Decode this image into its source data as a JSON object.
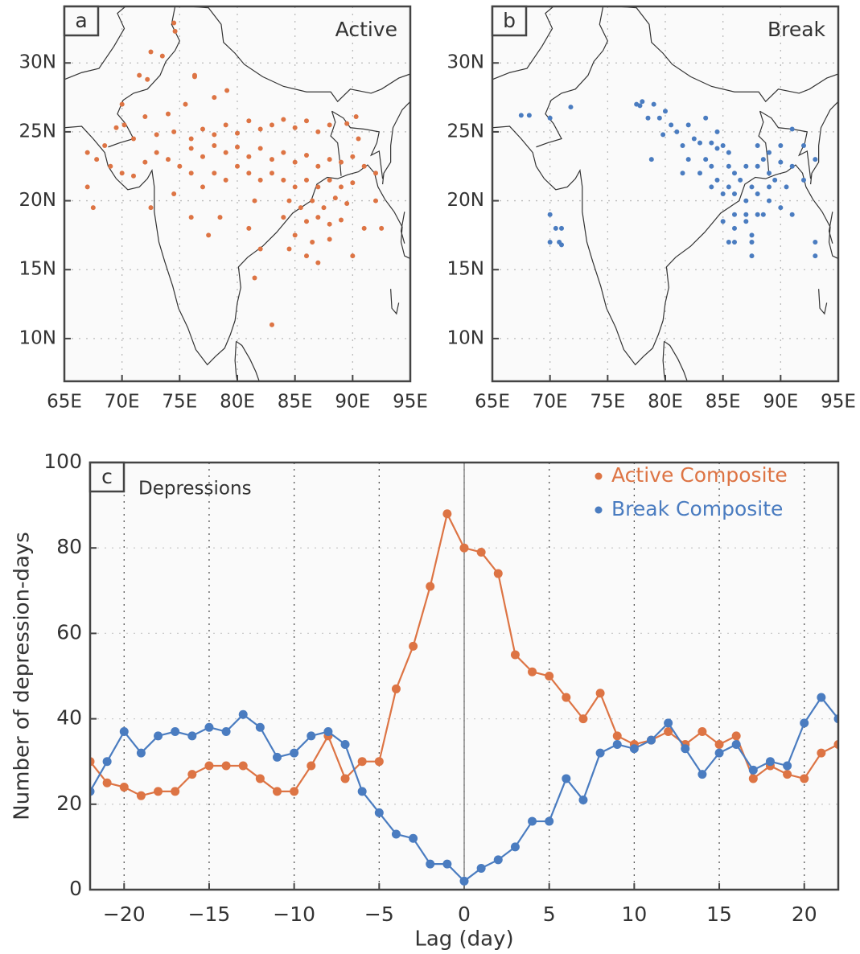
{
  "chart_data": [
    {
      "type": "scatter",
      "panel_label": "a",
      "title": "Active",
      "color": "#dd7444",
      "x": [
        72.5,
        73.5,
        74.6,
        74.5,
        72.2,
        71.5,
        76.3,
        79.1,
        78,
        75.5,
        74,
        72,
        70,
        69.5,
        70.2,
        71,
        73,
        74.5,
        76,
        77,
        78,
        79,
        80,
        81,
        82,
        83,
        84,
        85,
        86,
        87,
        88,
        89.5,
        90.3,
        67,
        67.8,
        68.5,
        69,
        70,
        71,
        72,
        73,
        74,
        75,
        76,
        77,
        78,
        79,
        80,
        81,
        82,
        83,
        84,
        85,
        86,
        87,
        88,
        89,
        90,
        91,
        92,
        72.5,
        74.5,
        76,
        77,
        78,
        79,
        80,
        81,
        82,
        83,
        84,
        85,
        86,
        87,
        88,
        89,
        90,
        84.5,
        85.5,
        86.5,
        87.5,
        88.5,
        89.5,
        86,
        87,
        88,
        89,
        84,
        85,
        86.5,
        88,
        84.5,
        86,
        87,
        90,
        91,
        92.5,
        92,
        83,
        81.5,
        82,
        81,
        78.5,
        77.5,
        76,
        67.5,
        67,
        76.3,
        90.5,
        81.5
      ],
      "y": [
        30.8,
        30.5,
        32.3,
        32.9,
        28.8,
        29.1,
        29.1,
        28,
        27.5,
        27,
        26.3,
        26.1,
        27,
        25.3,
        25.5,
        24.5,
        24.8,
        25,
        24.5,
        25.2,
        24.8,
        25.5,
        24.9,
        25.8,
        25.2,
        25.5,
        25.9,
        25.3,
        25.8,
        25,
        25.5,
        25.6,
        26.1,
        23.5,
        23,
        24,
        22.5,
        22,
        21.8,
        22.8,
        23.5,
        23,
        22.5,
        23.8,
        23.2,
        24,
        23.5,
        23.9,
        23.2,
        23.8,
        23,
        23.5,
        22.8,
        23.3,
        22.5,
        23,
        22.8,
        23.2,
        22.5,
        22,
        19.5,
        20.5,
        22,
        21,
        22,
        21.5,
        22.5,
        22,
        21.5,
        22,
        21.5,
        21,
        21.5,
        21,
        21.5,
        21,
        21.3,
        20,
        19.5,
        20,
        19.5,
        20.2,
        19.8,
        18.5,
        18.8,
        18.3,
        18.6,
        18.8,
        17.5,
        17,
        17.2,
        16.5,
        16,
        15.5,
        16,
        18,
        18,
        20,
        11,
        14.4,
        16.5,
        18,
        18.8,
        17.5,
        18.8,
        19.5,
        21,
        29,
        24.5,
        20
      ],
      "xlim": [
        65,
        95
      ],
      "ylim": [
        6.9,
        34.1
      ],
      "xticks": [
        {
          "value": 65,
          "label": "65E"
        },
        {
          "value": 70,
          "label": "70E"
        },
        {
          "value": 75,
          "label": "75E"
        },
        {
          "value": 80,
          "label": "80E"
        },
        {
          "value": 85,
          "label": "85E"
        },
        {
          "value": 90,
          "label": "90E"
        },
        {
          "value": 95,
          "label": "95E"
        }
      ],
      "yticks": [
        {
          "value": 10,
          "label": "10N"
        },
        {
          "value": 15,
          "label": "15N"
        },
        {
          "value": 20,
          "label": "20N"
        },
        {
          "value": 25,
          "label": "25N"
        },
        {
          "value": 30,
          "label": "30N"
        }
      ],
      "grid": true
    },
    {
      "type": "scatter",
      "panel_label": "b",
      "title": "Break",
      "color": "#4a7cc0",
      "x": [
        67.5,
        68.2,
        70,
        71.8,
        70,
        70,
        70.5,
        70.8,
        71,
        71,
        78,
        77.8,
        78.5,
        79.5,
        79.8,
        80.5,
        81,
        82,
        81.5,
        82.5,
        83,
        84,
        84.5,
        85,
        85.5,
        83.5,
        83,
        84,
        84.5,
        85.5,
        86,
        86.5,
        87,
        87.5,
        88,
        88.5,
        89,
        89.5,
        90,
        91,
        88,
        89,
        90,
        91,
        92,
        93,
        85.5,
        86,
        87,
        88,
        89,
        90,
        91,
        86,
        87,
        88,
        88.5,
        85,
        86,
        87,
        87.5,
        87.5,
        87.5,
        86,
        85.5,
        93,
        93,
        78.8,
        81.5,
        82,
        85,
        84,
        89,
        90.5,
        92,
        80,
        79,
        77.5,
        83.5,
        84.5
      ],
      "y": [
        26.2,
        26.2,
        26,
        26.8,
        19,
        17,
        18,
        17,
        16.8,
        18,
        27.2,
        26.9,
        26,
        26,
        24.8,
        25.5,
        25,
        25.5,
        24,
        24.5,
        24.2,
        24.2,
        23.8,
        24,
        23.5,
        23,
        22,
        22.5,
        21.5,
        22.5,
        22,
        21.5,
        22.5,
        21,
        22.5,
        23,
        22,
        21.5,
        22.8,
        22.5,
        24,
        23.5,
        24,
        25.2,
        24,
        23,
        21,
        20.5,
        20,
        20.5,
        20,
        19.5,
        19,
        19,
        19,
        19,
        19,
        18.5,
        18,
        18.5,
        17.5,
        17,
        16,
        17,
        17,
        17,
        16,
        23,
        22,
        23,
        20.5,
        21,
        21,
        21,
        21.5,
        26.5,
        27,
        27,
        26,
        25
      ],
      "xlim": [
        65,
        95
      ],
      "ylim": [
        6.9,
        34.1
      ],
      "xticks": [
        {
          "value": 65,
          "label": "65E"
        },
        {
          "value": 70,
          "label": "70E"
        },
        {
          "value": 75,
          "label": "75E"
        },
        {
          "value": 80,
          "label": "80E"
        },
        {
          "value": 85,
          "label": "85E"
        },
        {
          "value": 90,
          "label": "90E"
        },
        {
          "value": 95,
          "label": "95E"
        }
      ],
      "yticks": [
        {
          "value": 10,
          "label": "10N"
        },
        {
          "value": 15,
          "label": "15N"
        },
        {
          "value": 20,
          "label": "20N"
        },
        {
          "value": 25,
          "label": "25N"
        },
        {
          "value": 30,
          "label": "30N"
        }
      ],
      "grid": true
    },
    {
      "type": "line",
      "panel_label": "c",
      "title": "Depressions",
      "xlabel": "Lag (day)",
      "ylabel": "Number of depression-days",
      "x": [
        -22,
        -21,
        -20,
        -19,
        -18,
        -17,
        -16,
        -15,
        -14,
        -13,
        -12,
        -11,
        -10,
        -9,
        -8,
        -7,
        -6,
        -5,
        -4,
        -3,
        -2,
        -1,
        0,
        1,
        2,
        3,
        4,
        5,
        6,
        7,
        8,
        9,
        10,
        11,
        12,
        13,
        14,
        15,
        16,
        17,
        18,
        19,
        20,
        21,
        22
      ],
      "series": [
        {
          "name": "Active Composite",
          "color": "#dd7444",
          "values": [
            30,
            25,
            24,
            22,
            23,
            23,
            27,
            29,
            29,
            29,
            26,
            23,
            23,
            29,
            36,
            26,
            30,
            30,
            47,
            57,
            71,
            88,
            80,
            79,
            74,
            55,
            51,
            50,
            45,
            40,
            46,
            36,
            34,
            35,
            37,
            34,
            37,
            34,
            36,
            26,
            29,
            27,
            26,
            32,
            34
          ]
        },
        {
          "name": "Break Composite",
          "color": "#4a7cc0",
          "values": [
            23,
            30,
            37,
            32,
            36,
            37,
            36,
            38,
            37,
            41,
            38,
            31,
            32,
            36,
            37,
            34,
            23,
            18,
            13,
            12,
            6,
            6,
            2,
            5,
            7,
            10,
            16,
            16,
            26,
            21,
            32,
            34,
            33,
            35,
            39,
            33,
            27,
            32,
            34,
            28,
            30,
            29,
            39,
            45,
            40
          ]
        }
      ],
      "xlim": [
        -22,
        22
      ],
      "ylim": [
        0,
        100
      ],
      "xticks": [
        {
          "value": -20,
          "label": "−20"
        },
        {
          "value": -15,
          "label": "−15"
        },
        {
          "value": -10,
          "label": "−10"
        },
        {
          "value": -5,
          "label": "−5"
        },
        0,
        5,
        10,
        15,
        20
      ],
      "yticks": [
        0,
        20,
        40,
        60,
        80,
        100
      ],
      "legend": "upper right",
      "grid": true
    }
  ]
}
